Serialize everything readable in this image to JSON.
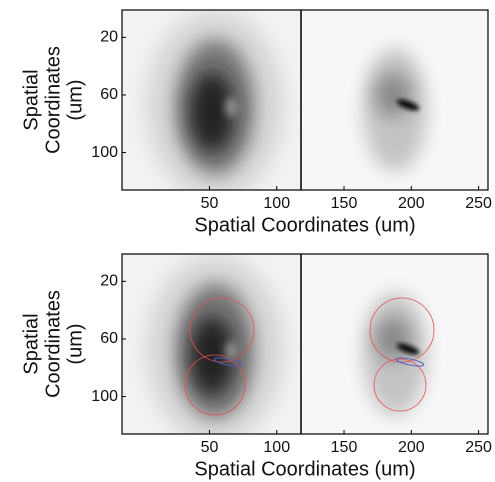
{
  "panels": [
    {
      "xlabel": "Spatial Coordinates (um)",
      "ylabel_lines": [
        "Spatial",
        "Coordinates",
        "(um)"
      ],
      "xlim": [
        -15,
        257
      ],
      "ylim": [
        1,
        126
      ],
      "xticks": [
        50,
        100,
        150,
        200,
        250
      ],
      "yticks": [
        20,
        60,
        100
      ]
    },
    {
      "xlabel": "Spatial Coordinates (um)",
      "ylabel_lines": [
        "Spatial",
        "Coordinates",
        "(um)"
      ],
      "xlim": [
        -15,
        257
      ],
      "ylim": [
        1,
        126
      ],
      "xticks": [
        50,
        100,
        150,
        200,
        250
      ],
      "yticks": [
        20,
        60,
        100
      ]
    }
  ]
}
